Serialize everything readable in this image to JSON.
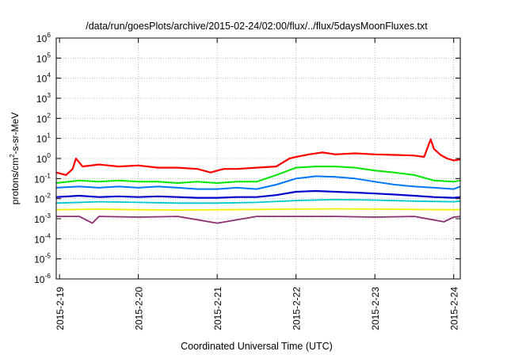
{
  "chart_data": {
    "type": "line",
    "title": "/data/run/goesPlots/archive/2015-02-24/02:00/flux/../flux/5daysMoonFluxes.txt",
    "xlabel": "Coordinated Universal Time (UTC)",
    "ylabel": {
      "base": "protons/cm",
      "sup": "2",
      "rest": "-s-sr-MeV"
    },
    "yscale": "log",
    "ylim_exp": [
      -6,
      6
    ],
    "yticks": [
      {
        "exp": -6,
        "base": "10",
        "sup": "-6"
      },
      {
        "exp": -5,
        "base": "10",
        "sup": "-5"
      },
      {
        "exp": -4,
        "base": "10",
        "sup": "-4"
      },
      {
        "exp": -3,
        "base": "10",
        "sup": "-3"
      },
      {
        "exp": -2,
        "base": "10",
        "sup": "-2"
      },
      {
        "exp": -1,
        "base": "10",
        "sup": "-1"
      },
      {
        "exp": 0,
        "base": "10",
        "sup": "0"
      },
      {
        "exp": 1,
        "base": "10",
        "sup": "1"
      },
      {
        "exp": 2,
        "base": "10",
        "sup": "2"
      },
      {
        "exp": 3,
        "base": "10",
        "sup": "3"
      },
      {
        "exp": 4,
        "base": "10",
        "sup": "4"
      },
      {
        "exp": 5,
        "base": "10",
        "sup": "5"
      },
      {
        "exp": 6,
        "base": "10",
        "sup": "6"
      }
    ],
    "xlim": [
      "2015-02-18 23:00",
      "2015-02-24 02:00"
    ],
    "xticks": [
      {
        "label": "2015-2-19",
        "t": "2015-02-19"
      },
      {
        "label": "2015-2-20",
        "t": "2015-02-20"
      },
      {
        "label": "2015-2-21",
        "t": "2015-02-21"
      },
      {
        "label": "2015-2-22",
        "t": "2015-02-22"
      },
      {
        "label": "2015-2-23",
        "t": "2015-02-23"
      },
      {
        "label": "2015-2-24",
        "t": "2015-02-24"
      }
    ],
    "grid": true,
    "legend": "none",
    "series": [
      {
        "color": "#ff0000",
        "width": 2.2,
        "x": [
          "2015-02-18 23:00",
          "2015-02-19 02:00",
          "2015-02-19 04:00",
          "2015-02-19 05:00",
          "2015-02-19 07:00",
          "2015-02-19 12:00",
          "2015-02-19 18:00",
          "2015-02-20 00:00",
          "2015-02-20 06:00",
          "2015-02-20 12:00",
          "2015-02-20 18:00",
          "2015-02-20 22:00",
          "2015-02-21 00:00",
          "2015-02-21 02:00",
          "2015-02-21 06:00",
          "2015-02-21 12:00",
          "2015-02-21 18:00",
          "2015-02-21 22:00",
          "2015-02-22 00:00",
          "2015-02-22 04:00",
          "2015-02-22 08:00",
          "2015-02-22 12:00",
          "2015-02-22 18:00",
          "2015-02-23 00:00",
          "2015-02-23 06:00",
          "2015-02-23 12:00",
          "2015-02-23 15:00",
          "2015-02-23 17:00",
          "2015-02-23 18:00",
          "2015-02-23 20:00",
          "2015-02-23 22:00",
          "2015-02-24 00:00",
          "2015-02-24 02:00"
        ],
        "y": [
          0.2,
          0.15,
          0.3,
          1.0,
          0.4,
          0.5,
          0.4,
          0.45,
          0.35,
          0.35,
          0.3,
          0.2,
          0.25,
          0.3,
          0.3,
          0.35,
          0.4,
          1.0,
          1.2,
          1.6,
          2.0,
          1.6,
          1.8,
          1.6,
          1.5,
          1.4,
          1.2,
          9.0,
          3.0,
          1.5,
          1.0,
          0.8,
          0.9
        ]
      },
      {
        "color": "#00e600",
        "width": 2.0,
        "x": [
          "2015-02-18 23:00",
          "2015-02-19 06:00",
          "2015-02-19 12:00",
          "2015-02-19 18:00",
          "2015-02-20 00:00",
          "2015-02-20 06:00",
          "2015-02-20 12:00",
          "2015-02-20 18:00",
          "2015-02-21 00:00",
          "2015-02-21 06:00",
          "2015-02-21 12:00",
          "2015-02-21 18:00",
          "2015-02-22 00:00",
          "2015-02-22 06:00",
          "2015-02-22 12:00",
          "2015-02-22 18:00",
          "2015-02-23 00:00",
          "2015-02-23 06:00",
          "2015-02-23 12:00",
          "2015-02-23 18:00",
          "2015-02-24 00:00",
          "2015-02-24 02:00"
        ],
        "y": [
          0.06,
          0.08,
          0.07,
          0.08,
          0.07,
          0.07,
          0.06,
          0.07,
          0.06,
          0.07,
          0.07,
          0.15,
          0.35,
          0.4,
          0.4,
          0.35,
          0.25,
          0.2,
          0.15,
          0.08,
          0.07,
          0.08
        ]
      },
      {
        "color": "#0077ff",
        "width": 2.0,
        "x": [
          "2015-02-18 23:00",
          "2015-02-19 06:00",
          "2015-02-19 12:00",
          "2015-02-19 18:00",
          "2015-02-20 00:00",
          "2015-02-20 06:00",
          "2015-02-20 12:00",
          "2015-02-20 18:00",
          "2015-02-21 00:00",
          "2015-02-21 06:00",
          "2015-02-21 12:00",
          "2015-02-21 18:00",
          "2015-02-22 00:00",
          "2015-02-22 06:00",
          "2015-02-22 12:00",
          "2015-02-22 18:00",
          "2015-02-23 00:00",
          "2015-02-23 06:00",
          "2015-02-23 12:00",
          "2015-02-23 18:00",
          "2015-02-24 00:00",
          "2015-02-24 02:00"
        ],
        "y": [
          0.035,
          0.04,
          0.035,
          0.04,
          0.035,
          0.04,
          0.035,
          0.03,
          0.03,
          0.035,
          0.03,
          0.05,
          0.1,
          0.13,
          0.12,
          0.1,
          0.07,
          0.05,
          0.04,
          0.035,
          0.03,
          0.04
        ]
      },
      {
        "color": "#0000cc",
        "width": 2.2,
        "x": [
          "2015-02-18 23:00",
          "2015-02-19 06:00",
          "2015-02-19 12:00",
          "2015-02-19 18:00",
          "2015-02-20 00:00",
          "2015-02-20 06:00",
          "2015-02-20 12:00",
          "2015-02-20 18:00",
          "2015-02-21 00:00",
          "2015-02-21 06:00",
          "2015-02-21 12:00",
          "2015-02-21 18:00",
          "2015-02-22 00:00",
          "2015-02-22 06:00",
          "2015-02-22 12:00",
          "2015-02-22 18:00",
          "2015-02-23 00:00",
          "2015-02-23 06:00",
          "2015-02-23 12:00",
          "2015-02-23 18:00",
          "2015-02-24 00:00",
          "2015-02-24 02:00"
        ],
        "y": [
          0.012,
          0.014,
          0.012,
          0.013,
          0.012,
          0.013,
          0.012,
          0.011,
          0.011,
          0.012,
          0.012,
          0.015,
          0.022,
          0.024,
          0.022,
          0.02,
          0.018,
          0.016,
          0.014,
          0.012,
          0.011,
          0.012
        ]
      },
      {
        "color": "#00c8c8",
        "width": 1.8,
        "x": [
          "2015-02-18 23:00",
          "2015-02-19 12:00",
          "2015-02-20 00:00",
          "2015-02-20 12:00",
          "2015-02-21 00:00",
          "2015-02-21 12:00",
          "2015-02-22 00:00",
          "2015-02-22 12:00",
          "2015-02-23 00:00",
          "2015-02-23 12:00",
          "2015-02-24 00:00",
          "2015-02-24 02:00"
        ],
        "y": [
          0.006,
          0.007,
          0.0065,
          0.006,
          0.006,
          0.0065,
          0.008,
          0.009,
          0.0085,
          0.0075,
          0.007,
          0.0075
        ]
      },
      {
        "color": "#f0f000",
        "width": 1.8,
        "x": [
          "2015-02-18 23:00",
          "2015-02-19 12:00",
          "2015-02-20 00:00",
          "2015-02-20 12:00",
          "2015-02-21 00:00",
          "2015-02-21 12:00",
          "2015-02-22 00:00",
          "2015-02-22 12:00",
          "2015-02-23 00:00",
          "2015-02-23 12:00",
          "2015-02-24 00:00",
          "2015-02-24 02:00"
        ],
        "y": [
          0.0028,
          0.003,
          0.0028,
          0.0027,
          0.0028,
          0.0029,
          0.003,
          0.0031,
          0.003,
          0.0029,
          0.0028,
          0.0029
        ]
      },
      {
        "color": "#8b2f6e",
        "width": 1.8,
        "x": [
          "2015-02-18 23:00",
          "2015-02-19 06:00",
          "2015-02-19 10:00",
          "2015-02-19 12:00",
          "2015-02-20 00:00",
          "2015-02-20 12:00",
          "2015-02-21 00:00",
          "2015-02-21 12:00",
          "2015-02-22 00:00",
          "2015-02-22 12:00",
          "2015-02-23 00:00",
          "2015-02-23 12:00",
          "2015-02-23 21:00",
          "2015-02-24 00:00",
          "2015-02-24 02:00"
        ],
        "y": [
          0.0013,
          0.0013,
          0.0006,
          0.0013,
          0.0012,
          0.0013,
          0.0006,
          0.0013,
          0.0013,
          0.0013,
          0.0012,
          0.0013,
          0.0007,
          0.0012,
          0.0013
        ]
      }
    ]
  }
}
